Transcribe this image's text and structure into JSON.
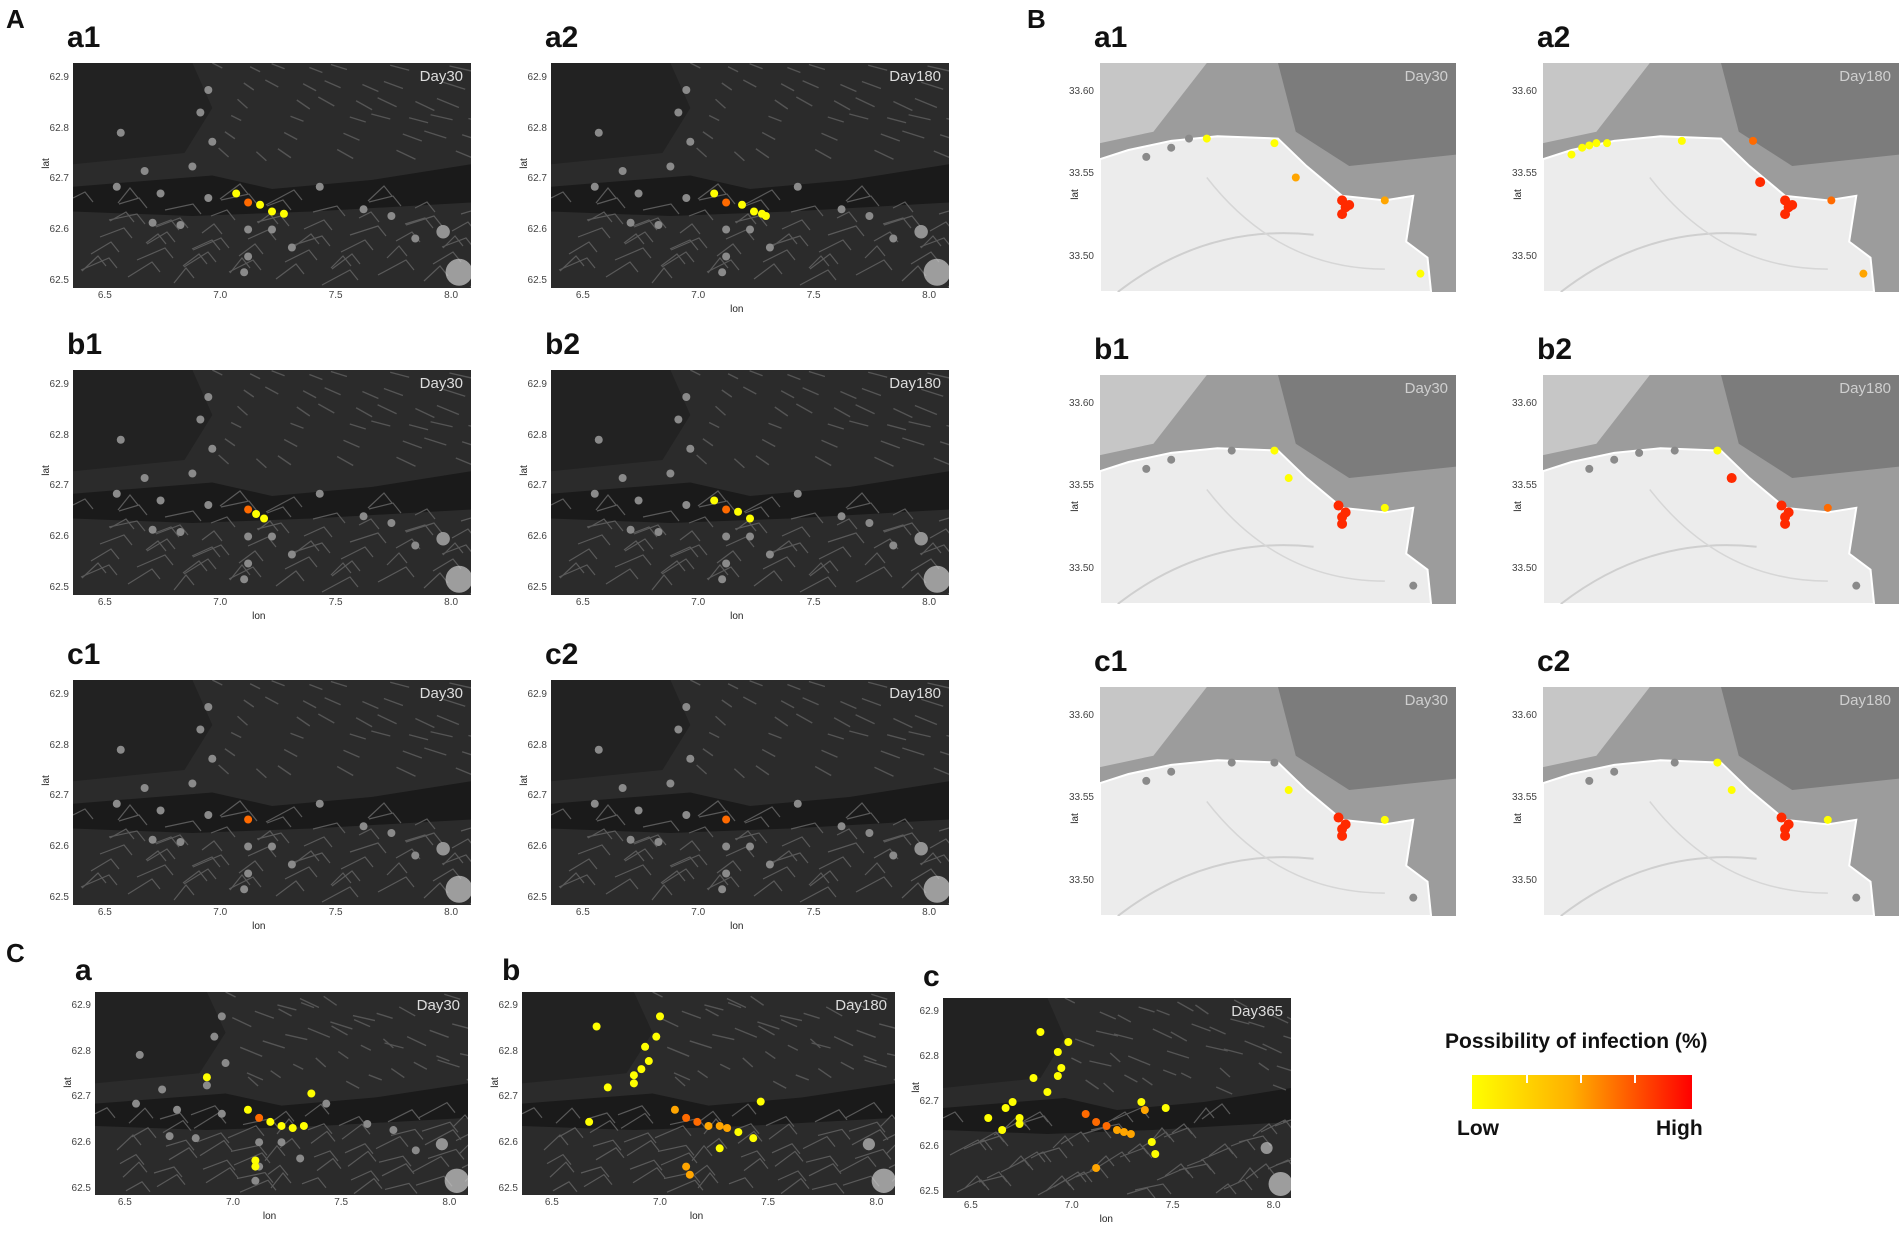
{
  "sections": {
    "A": "A",
    "B": "B",
    "C": "C"
  },
  "colors": {
    "low": "#ffff00",
    "mid": "#ffa500",
    "high_mid": "#ff6a00",
    "high": "#ff2a00",
    "grey_site": "#8a8a8a",
    "map_dark": "#1c1c1c",
    "map_light": "#ececec"
  },
  "norway": {
    "y_ticks": [
      "62.9",
      "62.8",
      "62.7",
      "62.6",
      "62.5"
    ],
    "x_ticks": [
      "6.5",
      "7.0",
      "7.5",
      "8.0"
    ],
    "xlabel": "lon",
    "ylabel": "lat"
  },
  "coast": {
    "y_ticks": [
      "33.60",
      "33.55",
      "33.50"
    ],
    "ylabel": "lat"
  },
  "panels": [
    {
      "label": "a1",
      "day": "Day30"
    },
    {
      "label": "a2",
      "day": "Day180"
    },
    {
      "label": "b1",
      "day": "Day30"
    },
    {
      "label": "b2",
      "day": "Day180"
    },
    {
      "label": "c1",
      "day": "Day30"
    },
    {
      "label": "c2",
      "day": "Day180"
    },
    {
      "label": "a1",
      "day": "Day30"
    },
    {
      "label": "a2",
      "day": "Day180"
    },
    {
      "label": "b1",
      "day": "Day30"
    },
    {
      "label": "b2",
      "day": "Day180"
    },
    {
      "label": "c1",
      "day": "Day30"
    },
    {
      "label": "c2",
      "day": "Day180"
    },
    {
      "label": "a",
      "day": "Day30"
    },
    {
      "label": "b",
      "day": "Day180"
    },
    {
      "label": "c",
      "day": "Day365"
    }
  ],
  "legend": {
    "title": "Possibility of infection (%)",
    "low": "Low",
    "high": "High"
  }
}
